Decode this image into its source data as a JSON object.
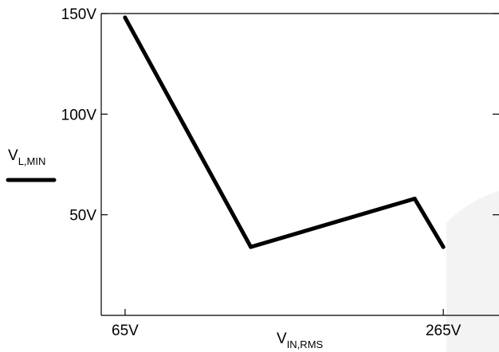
{
  "chart_data": {
    "type": "line",
    "xlabel": {
      "main": "V",
      "sub": "IN,RMS"
    },
    "ylabel": {
      "main": "V",
      "sub": "L,MIN"
    },
    "x_ticks": [
      {
        "value": 65,
        "label": "65V"
      },
      {
        "value": 265,
        "label": "265V"
      }
    ],
    "y_ticks": [
      {
        "value": 50,
        "label": "50V"
      },
      {
        "value": 100,
        "label": "100V"
      },
      {
        "value": 150,
        "label": "150V"
      }
    ],
    "xlim": [
      50,
      300
    ],
    "ylim": [
      0,
      150
    ],
    "grid": false,
    "legend": "left",
    "series": [
      {
        "color": "#000000",
        "points": [
          {
            "x": 65,
            "y": 148
          },
          {
            "x": 144,
            "y": 34
          },
          {
            "x": 247,
            "y": 58
          },
          {
            "x": 265,
            "y": 34
          }
        ]
      }
    ]
  }
}
